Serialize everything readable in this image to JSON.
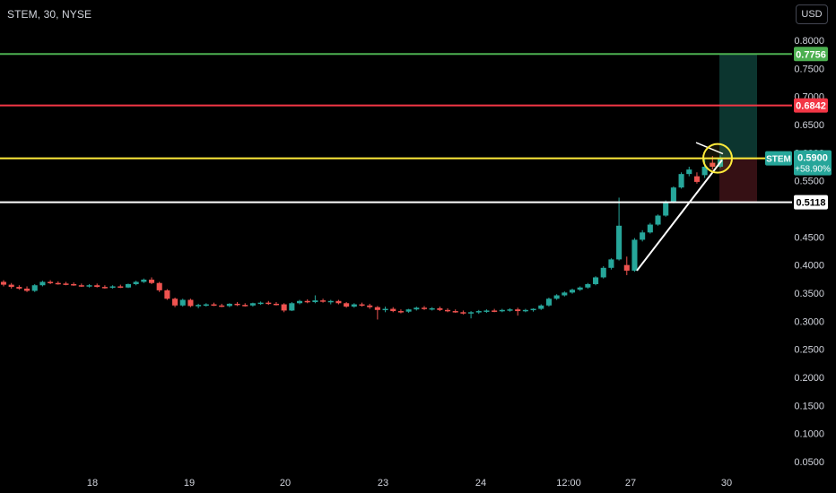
{
  "header": {
    "symbol_title": "STEM, 30, NYSE",
    "currency_button": "USD"
  },
  "colors": {
    "background": "#000000",
    "up_candle": "#26a69a",
    "down_candle": "#ef5350",
    "target_line": "#4caf50",
    "stop_line": "#f23645",
    "entry_line": "#ffeb3b",
    "support_line": "#ffffff",
    "profit_zone": "#0d3b34",
    "loss_zone": "#3b1216"
  },
  "price_axis": {
    "ticks": [
      "0.8000",
      "0.7500",
      "0.7000",
      "0.6500",
      "0.6000",
      "0.5500",
      "0.4500",
      "0.4000",
      "0.3500",
      "0.3000",
      "0.2500",
      "0.2000",
      "0.1500",
      "0.1000",
      "0.0500"
    ]
  },
  "time_axis": {
    "ticks": [
      "18",
      "19",
      "20",
      "23",
      "24",
      "12:00",
      "27",
      "30"
    ]
  },
  "levels": {
    "target": "0.7756",
    "stop": "0.6842",
    "entry": "0.5900",
    "support": "0.5118"
  },
  "last_price_badge": {
    "ticker": "STEM",
    "price": "0.5900",
    "change": "+58.90%"
  },
  "chart_data": {
    "type": "candlestick",
    "title": "STEM, 30, NYSE",
    "ylim": [
      0.02,
      0.82
    ],
    "price_unit": "USD",
    "horizontal_levels": [
      0.7756,
      0.6842,
      0.59,
      0.5118
    ],
    "candles": [
      [
        0.37,
        0.373,
        0.362,
        0.365
      ],
      [
        0.365,
        0.368,
        0.358,
        0.361
      ],
      [
        0.361,
        0.364,
        0.356,
        0.358
      ],
      [
        0.358,
        0.362,
        0.352,
        0.354
      ],
      [
        0.354,
        0.366,
        0.352,
        0.364
      ],
      [
        0.364,
        0.372,
        0.362,
        0.37
      ],
      [
        0.37,
        0.373,
        0.366,
        0.368
      ],
      [
        0.368,
        0.371,
        0.365,
        0.367
      ],
      [
        0.367,
        0.37,
        0.364,
        0.366
      ],
      [
        0.366,
        0.369,
        0.363,
        0.364
      ],
      [
        0.364,
        0.367,
        0.361,
        0.362
      ],
      [
        0.362,
        0.366,
        0.36,
        0.364
      ],
      [
        0.364,
        0.367,
        0.36,
        0.361
      ],
      [
        0.361,
        0.364,
        0.358,
        0.36
      ],
      [
        0.36,
        0.364,
        0.358,
        0.362
      ],
      [
        0.362,
        0.365,
        0.359,
        0.36
      ],
      [
        0.36,
        0.367,
        0.359,
        0.366
      ],
      [
        0.366,
        0.372,
        0.364,
        0.37
      ],
      [
        0.37,
        0.376,
        0.368,
        0.374
      ],
      [
        0.374,
        0.378,
        0.366,
        0.368
      ],
      [
        0.368,
        0.37,
        0.352,
        0.355
      ],
      [
        0.355,
        0.357,
        0.338,
        0.34
      ],
      [
        0.34,
        0.342,
        0.325,
        0.328
      ],
      [
        0.328,
        0.34,
        0.326,
        0.338
      ],
      [
        0.338,
        0.34,
        0.325,
        0.327
      ],
      [
        0.327,
        0.331,
        0.323,
        0.329
      ],
      [
        0.329,
        0.332,
        0.326,
        0.33
      ],
      [
        0.33,
        0.333,
        0.327,
        0.328
      ],
      [
        0.328,
        0.331,
        0.325,
        0.327
      ],
      [
        0.327,
        0.332,
        0.325,
        0.331
      ],
      [
        0.331,
        0.334,
        0.327,
        0.329
      ],
      [
        0.329,
        0.332,
        0.326,
        0.328
      ],
      [
        0.328,
        0.333,
        0.326,
        0.332
      ],
      [
        0.332,
        0.335,
        0.329,
        0.333
      ],
      [
        0.333,
        0.336,
        0.329,
        0.331
      ],
      [
        0.331,
        0.334,
        0.328,
        0.33
      ],
      [
        0.33,
        0.332,
        0.316,
        0.319
      ],
      [
        0.319,
        0.334,
        0.318,
        0.332
      ],
      [
        0.332,
        0.338,
        0.33,
        0.336
      ],
      [
        0.336,
        0.339,
        0.332,
        0.334
      ],
      [
        0.334,
        0.346,
        0.332,
        0.337
      ],
      [
        0.337,
        0.34,
        0.333,
        0.335
      ],
      [
        0.335,
        0.338,
        0.33,
        0.336
      ],
      [
        0.336,
        0.338,
        0.33,
        0.332
      ],
      [
        0.332,
        0.334,
        0.324,
        0.326
      ],
      [
        0.326,
        0.332,
        0.324,
        0.33
      ],
      [
        0.33,
        0.333,
        0.326,
        0.328
      ],
      [
        0.328,
        0.331,
        0.322,
        0.325
      ],
      [
        0.325,
        0.327,
        0.303,
        0.32
      ],
      [
        0.32,
        0.326,
        0.316,
        0.322
      ],
      [
        0.322,
        0.325,
        0.316,
        0.318
      ],
      [
        0.318,
        0.321,
        0.314,
        0.317
      ],
      [
        0.317,
        0.322,
        0.315,
        0.321
      ],
      [
        0.321,
        0.326,
        0.319,
        0.324
      ],
      [
        0.324,
        0.327,
        0.32,
        0.322
      ],
      [
        0.322,
        0.325,
        0.319,
        0.323
      ],
      [
        0.323,
        0.326,
        0.318,
        0.32
      ],
      [
        0.32,
        0.323,
        0.316,
        0.318
      ],
      [
        0.318,
        0.321,
        0.315,
        0.316
      ],
      [
        0.316,
        0.319,
        0.312,
        0.314
      ],
      [
        0.314,
        0.318,
        0.305,
        0.316
      ],
      [
        0.316,
        0.32,
        0.313,
        0.318
      ],
      [
        0.318,
        0.321,
        0.315,
        0.319
      ],
      [
        0.319,
        0.322,
        0.316,
        0.318
      ],
      [
        0.318,
        0.322,
        0.316,
        0.32
      ],
      [
        0.32,
        0.323,
        0.317,
        0.321
      ],
      [
        0.321,
        0.324,
        0.31,
        0.318
      ],
      [
        0.318,
        0.322,
        0.316,
        0.32
      ],
      [
        0.32,
        0.323,
        0.317,
        0.322
      ],
      [
        0.322,
        0.33,
        0.32,
        0.328
      ],
      [
        0.328,
        0.342,
        0.326,
        0.34
      ],
      [
        0.34,
        0.348,
        0.338,
        0.346
      ],
      [
        0.346,
        0.353,
        0.344,
        0.351
      ],
      [
        0.351,
        0.358,
        0.349,
        0.356
      ],
      [
        0.356,
        0.362,
        0.354,
        0.36
      ],
      [
        0.36,
        0.368,
        0.358,
        0.366
      ],
      [
        0.366,
        0.38,
        0.364,
        0.378
      ],
      [
        0.378,
        0.398,
        0.376,
        0.395
      ],
      [
        0.395,
        0.412,
        0.392,
        0.41
      ],
      [
        0.41,
        0.52,
        0.408,
        0.47
      ],
      [
        0.4,
        0.415,
        0.382,
        0.39
      ],
      [
        0.39,
        0.448,
        0.388,
        0.445
      ],
      [
        0.445,
        0.462,
        0.442,
        0.458
      ],
      [
        0.458,
        0.475,
        0.456,
        0.472
      ],
      [
        0.472,
        0.49,
        0.47,
        0.488
      ],
      [
        0.488,
        0.515,
        0.486,
        0.512
      ],
      [
        0.512,
        0.54,
        0.51,
        0.538
      ],
      [
        0.538,
        0.565,
        0.536,
        0.562
      ],
      [
        0.562,
        0.575,
        0.558,
        0.57
      ],
      [
        0.558,
        0.565,
        0.545,
        0.548
      ],
      [
        0.56,
        0.59,
        0.555,
        0.575
      ],
      [
        0.582,
        0.594,
        0.57,
        0.575
      ],
      [
        0.575,
        0.595,
        0.573,
        0.59
      ]
    ]
  }
}
